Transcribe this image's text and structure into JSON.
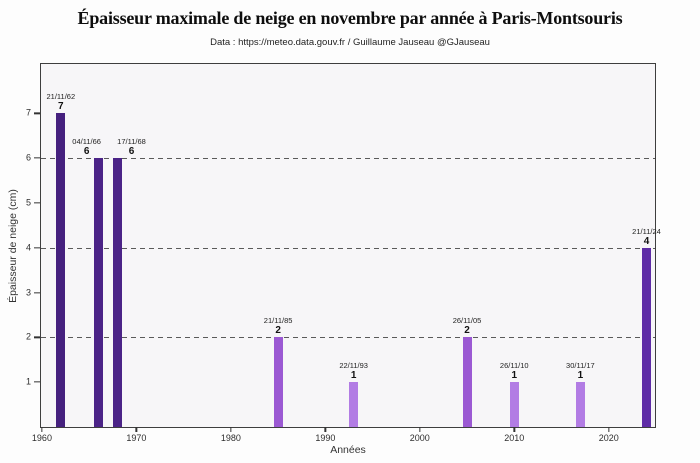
{
  "chart_data": {
    "type": "bar",
    "title": "Épaisseur maximale de neige en novembre par année à Paris-Montsouris",
    "subtitle": "Data : https://meteo.data.gouv.fr / Guillaume Jauseau @GJauseau",
    "xlabel": "Années",
    "ylabel": "Épaisseur de neige (cm)",
    "x_range": [
      1959.9,
      2024.9
    ],
    "y_range": [
      0,
      8.1
    ],
    "x_ticks": [
      1960,
      1970,
      1980,
      1990,
      2000,
      2010,
      2020
    ],
    "y_ticks": [
      1,
      2,
      3,
      4,
      5,
      6,
      7
    ],
    "gridlines": [
      2,
      4,
      6
    ],
    "grid_style": "dashed",
    "legend_position": "none",
    "bars": [
      {
        "date": "21/11/62",
        "year": 1962,
        "value": 7,
        "color": "#45207e",
        "label_dx": 0
      },
      {
        "date": "04/11/66",
        "year": 1966,
        "value": 6,
        "color": "#4b2387",
        "label_dx": -12
      },
      {
        "date": "17/11/68",
        "year": 1968,
        "value": 6,
        "color": "#4b2387",
        "label_dx": 14
      },
      {
        "date": "21/11/85",
        "year": 1985,
        "value": 2,
        "color": "#9b59d3",
        "label_dx": 0
      },
      {
        "date": "22/11/93",
        "year": 1993,
        "value": 1,
        "color": "#b27ce4",
        "label_dx": 0
      },
      {
        "date": "26/11/05",
        "year": 2005,
        "value": 2,
        "color": "#9b59d3",
        "label_dx": 0
      },
      {
        "date": "26/11/10",
        "year": 2010,
        "value": 1,
        "color": "#b27ce4",
        "label_dx": 0
      },
      {
        "date": "30/11/17",
        "year": 2017,
        "value": 1,
        "color": "#b27ce4",
        "label_dx": 0
      },
      {
        "date": "21/11/24",
        "year": 2024,
        "value": 4,
        "color": "#5e2ca6",
        "label_dx": 0
      }
    ]
  }
}
